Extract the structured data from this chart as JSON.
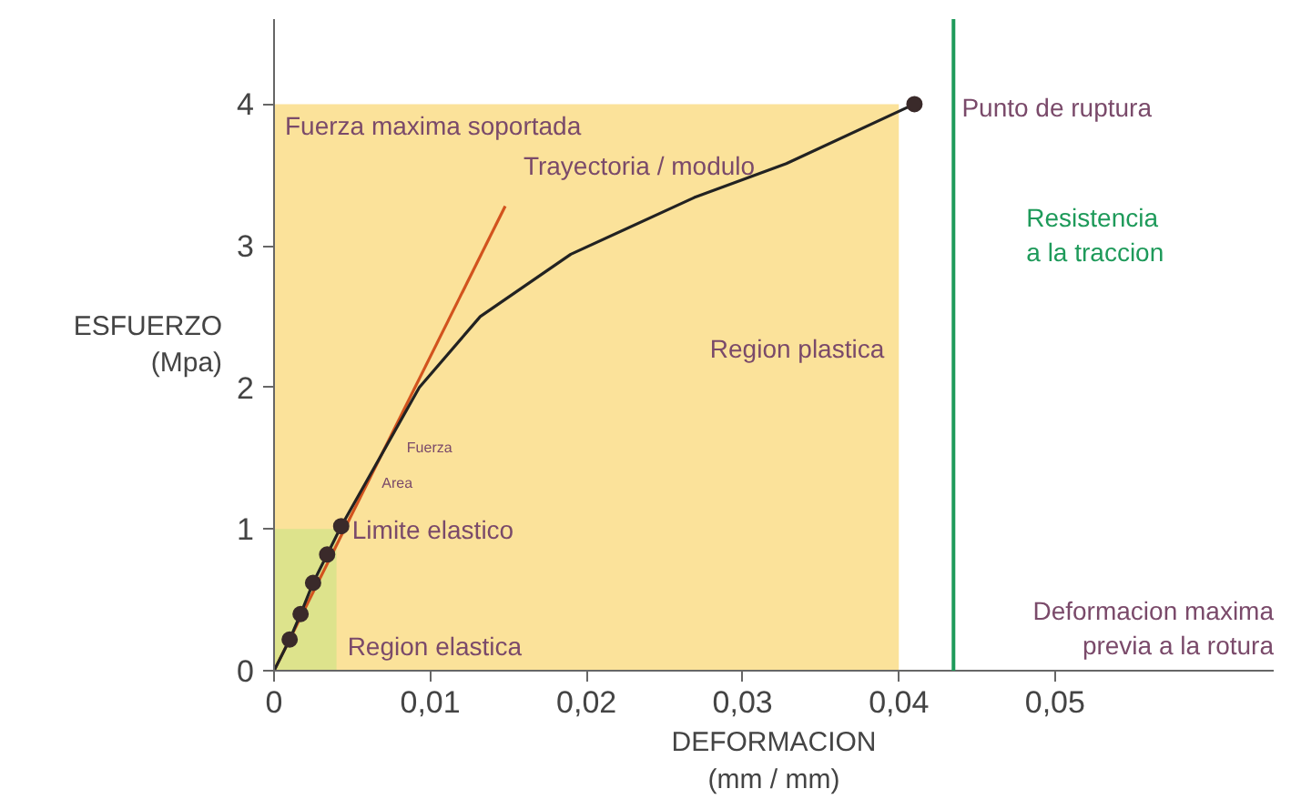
{
  "chart_data": {
    "type": "line",
    "xlabel": "DEFORMACION\n(mm / mm)",
    "ylabel": "ESFUERZO\n(Mpa)",
    "xlim": [
      0,
      0.064
    ],
    "ylim": [
      0,
      4.6
    ],
    "xticks": [
      {
        "value": 0,
        "label": "0"
      },
      {
        "value": 0.01,
        "label": "0,01"
      },
      {
        "value": 0.02,
        "label": "0,02"
      },
      {
        "value": 0.03,
        "label": "0,03"
      },
      {
        "value": 0.04,
        "label": "0,04"
      },
      {
        "value": 0.05,
        "label": "0,05"
      }
    ],
    "yticks": [
      0,
      1,
      2,
      3,
      4
    ],
    "grid": false,
    "series": [
      {
        "type": "area",
        "color": "#fbe29a",
        "x": [
          0,
          0.04
        ],
        "values": [
          4,
          4
        ]
      },
      {
        "type": "area",
        "color": "#dde38c",
        "x": [
          0,
          0.004
        ],
        "values": [
          1,
          1
        ]
      },
      {
        "type": "line",
        "color": "#d2531e",
        "x": [
          0,
          0.0148
        ],
        "values": [
          0,
          3.28
        ]
      },
      {
        "type": "line",
        "color": "#222222",
        "x": [
          0,
          0.001,
          0.0017,
          0.0025,
          0.0034,
          0.0043,
          0.0065,
          0.0093,
          0.0132,
          0.019,
          0.0269,
          0.0328,
          0.041
        ],
        "values": [
          0,
          0.22,
          0.4,
          0.62,
          0.82,
          1.02,
          1.45,
          2.0,
          2.5,
          2.94,
          3.34,
          3.58,
          4.0
        ]
      },
      {
        "type": "scatter",
        "color": "#3a2a2a",
        "marker": "circle",
        "x": [
          0.001,
          0.0017,
          0.0025,
          0.0034,
          0.0043,
          0.041
        ],
        "values": [
          0.22,
          0.4,
          0.62,
          0.82,
          1.02,
          4.0
        ]
      }
    ],
    "ref_lines": [
      {
        "axis": "x",
        "value": 0.0435,
        "label": "Resistencia\na la traccion",
        "color": "#1e9a5a"
      }
    ],
    "annotations": [
      {
        "text": "Fuerza maxima soportada",
        "x": 0,
        "y": 4
      },
      {
        "text": "Punto de ruptura",
        "x": 0.041,
        "y": 4
      },
      {
        "text": "Trayectoria / modulo",
        "x": 0.0148,
        "y": 3.28
      },
      {
        "text": "Region plastica",
        "x": 0.04,
        "y": 2.3
      },
      {
        "text": "Fuerza",
        "x": 0.0078,
        "y": 1.6
      },
      {
        "text": "Area",
        "x": 0.0062,
        "y": 1.35
      },
      {
        "text": "Limite elastico",
        "x": 0.0043,
        "y": 1.02
      },
      {
        "text": "Region elastica",
        "x": 0.004,
        "y": 0.2
      },
      "Deformacion maxima\nprevia a la rotura"
    ]
  }
}
